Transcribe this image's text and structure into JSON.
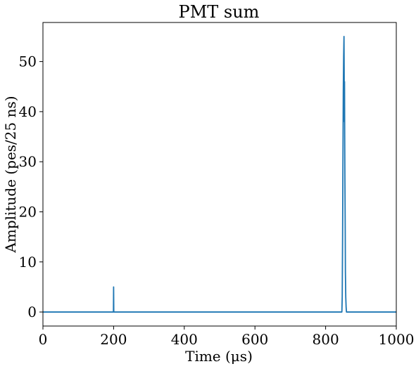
{
  "chart_data": {
    "type": "line",
    "title": "PMT sum",
    "xlabel": "Time (μs)",
    "ylabel": "Amplitude (pes/25 ns)",
    "xlim": [
      0,
      1000
    ],
    "ylim": [
      -2.8,
      57.8
    ],
    "xticks": [
      "0",
      "200",
      "400",
      "600",
      "800",
      "1000"
    ],
    "yticks": [
      "0",
      "10",
      "20",
      "30",
      "40",
      "50"
    ],
    "grid": false,
    "legend": "none",
    "series": [
      {
        "color": "#1f77b4",
        "x": [
          0,
          199.5,
          200,
          200.5,
          201,
          846,
          847,
          848,
          849,
          850,
          851,
          852,
          852.5,
          853,
          853.5,
          854,
          854.5,
          855,
          855.5,
          856,
          857,
          858,
          859,
          860,
          1000
        ],
        "y": [
          0,
          0,
          5,
          0,
          0,
          0,
          3,
          15,
          30,
          44,
          51,
          55,
          48,
          38,
          46,
          35,
          27,
          22,
          16,
          8,
          3,
          1,
          0,
          0,
          0
        ]
      }
    ]
  }
}
